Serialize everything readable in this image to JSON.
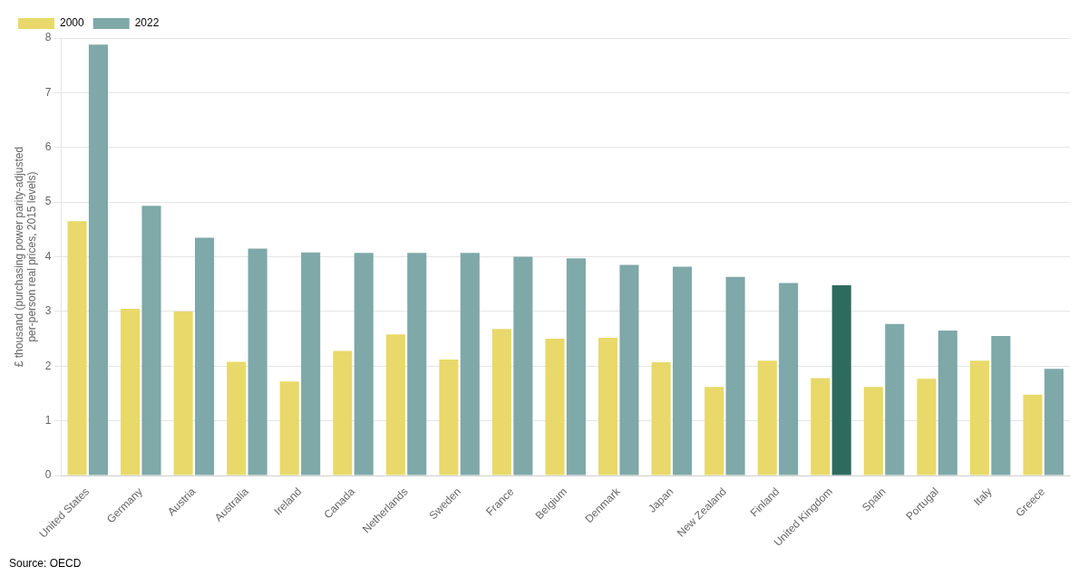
{
  "chart_data": {
    "type": "bar",
    "categories": [
      "United States",
      "Germany",
      "Austria",
      "Australia",
      "Ireland",
      "Canada",
      "Netherlands",
      "Sweden",
      "France",
      "Belgium",
      "Denmark",
      "Japan",
      "New Zealand",
      "Finland",
      "United Kingdom",
      "Spain",
      "Portugal",
      "Italy",
      "Greece"
    ],
    "series": [
      {
        "name": "2000",
        "color": "#e8d96a",
        "values": [
          4.65,
          3.05,
          3.0,
          2.08,
          1.72,
          2.28,
          2.58,
          2.12,
          2.68,
          2.5,
          2.52,
          2.07,
          1.62,
          2.1,
          1.78,
          1.62,
          1.77,
          2.1,
          1.48
        ]
      },
      {
        "name": "2022",
        "color": "#7fa8a8",
        "colors": [
          "#7fa8a8",
          "#7fa8a8",
          "#7fa8a8",
          "#7fa8a8",
          "#7fa8a8",
          "#7fa8a8",
          "#7fa8a8",
          "#7fa8a8",
          "#7fa8a8",
          "#7fa8a8",
          "#7fa8a8",
          "#7fa8a8",
          "#7fa8a8",
          "#7fa8a8",
          "#2e6b5e",
          "#7fa8a8",
          "#7fa8a8",
          "#7fa8a8",
          "#7fa8a8"
        ],
        "values": [
          7.88,
          4.93,
          4.35,
          4.15,
          4.08,
          4.07,
          4.07,
          4.07,
          4.0,
          3.97,
          3.85,
          3.82,
          3.63,
          3.52,
          3.48,
          2.77,
          2.65,
          2.55,
          1.95
        ]
      }
    ],
    "ylabel": "£ thousand (purchasing power parity-adjusted\nper-person real prices, 2015 levels)",
    "ylim": [
      0,
      8
    ],
    "yticks": [
      0,
      1,
      2,
      3,
      4,
      5,
      6,
      7,
      8
    ],
    "grid": "y",
    "legend": "upper left",
    "annotations": [
      "Source: OECD"
    ]
  }
}
